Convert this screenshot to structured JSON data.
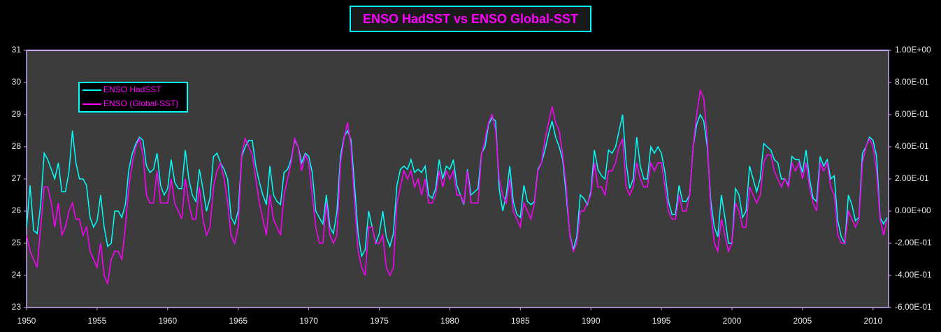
{
  "chart_data": {
    "type": "line",
    "title": "ENSO HadSST vs ENSO Global-SST",
    "x": [
      1950,
      1950.25,
      1950.5,
      1950.75,
      1951,
      1951.25,
      1951.5,
      1951.75,
      1952,
      1952.25,
      1952.5,
      1952.75,
      1953,
      1953.25,
      1953.5,
      1953.75,
      1954,
      1954.25,
      1954.5,
      1954.75,
      1955,
      1955.25,
      1955.5,
      1955.75,
      1956,
      1956.25,
      1956.5,
      1956.75,
      1957,
      1957.25,
      1957.5,
      1957.75,
      1958,
      1958.25,
      1958.5,
      1958.75,
      1959,
      1959.25,
      1959.5,
      1959.75,
      1960,
      1960.25,
      1960.5,
      1960.75,
      1961,
      1961.25,
      1961.5,
      1961.75,
      1962,
      1962.25,
      1962.5,
      1962.75,
      1963,
      1963.25,
      1963.5,
      1963.75,
      1964,
      1964.25,
      1964.5,
      1964.75,
      1965,
      1965.25,
      1965.5,
      1965.75,
      1966,
      1966.25,
      1966.5,
      1966.75,
      1967,
      1967.25,
      1967.5,
      1967.75,
      1968,
      1968.25,
      1968.5,
      1968.75,
      1969,
      1969.25,
      1969.5,
      1969.75,
      1970,
      1970.25,
      1970.5,
      1970.75,
      1971,
      1971.25,
      1971.5,
      1971.75,
      1972,
      1972.25,
      1972.5,
      1972.75,
      1973,
      1973.25,
      1973.5,
      1973.75,
      1974,
      1974.25,
      1974.5,
      1974.75,
      1975,
      1975.25,
      1975.5,
      1975.75,
      1976,
      1976.25,
      1976.5,
      1976.75,
      1977,
      1977.25,
      1977.5,
      1977.75,
      1978,
      1978.25,
      1978.5,
      1978.75,
      1979,
      1979.25,
      1979.5,
      1979.75,
      1980,
      1980.25,
      1980.5,
      1980.75,
      1981,
      1981.25,
      1981.5,
      1981.75,
      1982,
      1982.25,
      1982.5,
      1982.75,
      1983,
      1983.25,
      1983.5,
      1983.75,
      1984,
      1984.25,
      1984.5,
      1984.75,
      1985,
      1985.25,
      1985.5,
      1985.75,
      1986,
      1986.25,
      1986.5,
      1986.75,
      1987,
      1987.25,
      1987.5,
      1987.75,
      1988,
      1988.25,
      1988.5,
      1988.75,
      1989,
      1989.25,
      1989.5,
      1989.75,
      1990,
      1990.25,
      1990.5,
      1990.75,
      1991,
      1991.25,
      1991.5,
      1991.75,
      1992,
      1992.25,
      1992.5,
      1992.75,
      1993,
      1993.25,
      1993.5,
      1993.75,
      1994,
      1994.25,
      1994.5,
      1994.75,
      1995,
      1995.25,
      1995.5,
      1995.75,
      1996,
      1996.25,
      1996.5,
      1996.75,
      1997,
      1997.25,
      1997.5,
      1997.75,
      1998,
      1998.25,
      1998.5,
      1998.75,
      1999,
      1999.25,
      1999.5,
      1999.75,
      2000,
      2000.25,
      2000.5,
      2000.75,
      2001,
      2001.25,
      2001.5,
      2001.75,
      2002,
      2002.25,
      2002.5,
      2002.75,
      2003,
      2003.25,
      2003.5,
      2003.75,
      2004,
      2004.25,
      2004.5,
      2004.75,
      2005,
      2005.25,
      2005.5,
      2005.75,
      2006,
      2006.25,
      2006.5,
      2006.75,
      2007,
      2007.25,
      2007.5,
      2007.75,
      2008,
      2008.25,
      2008.5,
      2008.75,
      2009,
      2009.25,
      2009.5,
      2009.75,
      2010,
      2010.25,
      2010.5,
      2010.75,
      2011
    ],
    "series": [
      {
        "name": "ENSO HadSST",
        "color": "#00ffff",
        "values": [
          25.5,
          26.8,
          25.4,
          25.3,
          26.2,
          27.8,
          27.6,
          27.3,
          27.0,
          27.5,
          26.6,
          26.6,
          27.2,
          28.5,
          27.5,
          27.0,
          27.0,
          26.8,
          25.8,
          25.5,
          25.7,
          26.5,
          25.5,
          24.9,
          25.0,
          26.0,
          26.0,
          25.8,
          26.2,
          27.3,
          27.8,
          28.1,
          28.3,
          28.2,
          27.4,
          27.2,
          27.3,
          27.8,
          26.8,
          26.5,
          26.7,
          27.6,
          26.9,
          26.7,
          26.7,
          27.9,
          27.0,
          26.5,
          26.3,
          27.3,
          26.7,
          26.0,
          26.4,
          27.7,
          27.8,
          27.5,
          27.3,
          27.0,
          25.8,
          25.6,
          26.0,
          27.7,
          28.0,
          28.2,
          28.2,
          27.4,
          26.9,
          26.5,
          26.2,
          27.4,
          26.5,
          26.3,
          26.2,
          27.2,
          27.3,
          27.6,
          28.2,
          28.0,
          27.5,
          27.8,
          27.7,
          27.2,
          26.0,
          25.8,
          25.6,
          26.5,
          25.5,
          25.3,
          26.0,
          27.7,
          28.3,
          28.5,
          28.2,
          26.8,
          25.3,
          24.6,
          24.8,
          26.0,
          25.5,
          25.0,
          25.3,
          26.0,
          25.2,
          24.9,
          25.3,
          26.8,
          27.3,
          27.4,
          27.3,
          27.6,
          27.2,
          27.3,
          27.2,
          27.4,
          26.5,
          26.4,
          26.7,
          27.6,
          27.0,
          27.4,
          27.3,
          27.6,
          26.8,
          26.5,
          26.2,
          27.3,
          26.5,
          26.6,
          26.7,
          27.8,
          28.0,
          28.7,
          28.9,
          28.8,
          26.7,
          26.0,
          26.5,
          27.4,
          26.3,
          25.9,
          25.8,
          26.8,
          26.3,
          26.2,
          26.3,
          27.3,
          27.5,
          27.9,
          28.4,
          28.8,
          28.3,
          28.0,
          27.6,
          26.5,
          25.3,
          24.8,
          25.2,
          26.5,
          26.4,
          26.2,
          26.6,
          27.9,
          27.3,
          27.1,
          27.0,
          27.9,
          27.8,
          28.0,
          28.5,
          29.0,
          27.5,
          26.7,
          27.0,
          28.3,
          27.4,
          27.0,
          27.0,
          28.0,
          27.8,
          28.0,
          27.8,
          27.2,
          26.3,
          25.9,
          25.9,
          26.8,
          26.3,
          26.3,
          26.5,
          28.0,
          28.7,
          29.0,
          28.8,
          28.0,
          26.3,
          25.5,
          25.2,
          26.5,
          25.8,
          25.0,
          25.0,
          26.7,
          26.5,
          25.8,
          26.0,
          27.4,
          27.0,
          26.6,
          27.0,
          28.1,
          28.0,
          27.9,
          27.6,
          27.5,
          27.0,
          27.0,
          26.8,
          27.7,
          27.6,
          27.6,
          27.2,
          27.9,
          27.0,
          26.4,
          26.3,
          27.7,
          27.4,
          27.6,
          27.0,
          27.1,
          25.7,
          25.2,
          25.0,
          26.5,
          26.2,
          25.7,
          25.8,
          27.8,
          28.0,
          28.3,
          28.2,
          27.7,
          25.8,
          25.6,
          25.8
        ]
      },
      {
        "name": "ENSO (Global-SST)",
        "color": "#ff00ff",
        "axis": "y2",
        "values": [
          -0.15,
          -0.25,
          -0.3,
          -0.35,
          -0.1,
          0.15,
          0.15,
          0.05,
          -0.1,
          0.05,
          -0.15,
          -0.1,
          0.0,
          0.05,
          -0.05,
          -0.05,
          -0.15,
          -0.1,
          -0.25,
          -0.3,
          -0.35,
          -0.2,
          -0.4,
          -0.45,
          -0.3,
          -0.25,
          -0.25,
          -0.3,
          -0.1,
          0.15,
          0.3,
          0.4,
          0.45,
          0.35,
          0.1,
          0.05,
          0.05,
          0.25,
          0.05,
          0.05,
          0.05,
          0.2,
          0.05,
          0.0,
          -0.05,
          0.2,
          0.05,
          -0.05,
          -0.05,
          0.15,
          -0.05,
          -0.15,
          -0.1,
          0.15,
          0.25,
          0.3,
          0.2,
          0.05,
          -0.15,
          -0.2,
          -0.1,
          0.35,
          0.45,
          0.4,
          0.35,
          0.2,
          0.05,
          -0.05,
          -0.15,
          0.1,
          -0.05,
          -0.1,
          -0.15,
          0.1,
          0.2,
          0.3,
          0.45,
          0.4,
          0.25,
          0.35,
          0.3,
          0.1,
          -0.1,
          -0.2,
          -0.2,
          0.05,
          -0.15,
          -0.2,
          -0.15,
          0.3,
          0.45,
          0.55,
          0.4,
          0.05,
          -0.25,
          -0.35,
          -0.4,
          -0.1,
          -0.1,
          -0.2,
          -0.2,
          -0.15,
          -0.35,
          -0.4,
          -0.35,
          0.05,
          0.15,
          0.25,
          0.2,
          0.25,
          0.15,
          0.2,
          0.1,
          0.2,
          0.05,
          0.05,
          0.1,
          0.25,
          0.15,
          0.25,
          0.2,
          0.25,
          0.1,
          0.1,
          0.05,
          0.25,
          0.05,
          0.05,
          0.05,
          0.35,
          0.45,
          0.55,
          0.6,
          0.5,
          0.2,
          0.1,
          0.05,
          0.2,
          0.0,
          -0.05,
          -0.1,
          0.05,
          0.0,
          -0.05,
          0.05,
          0.25,
          0.3,
          0.45,
          0.55,
          0.65,
          0.55,
          0.5,
          0.35,
          0.15,
          -0.15,
          -0.25,
          -0.2,
          0.0,
          0.0,
          0.05,
          0.1,
          0.3,
          0.15,
          0.15,
          0.1,
          0.25,
          0.25,
          0.3,
          0.4,
          0.45,
          0.15,
          0.1,
          0.15,
          0.3,
          0.2,
          0.15,
          0.15,
          0.3,
          0.25,
          0.3,
          0.3,
          0.15,
          0.0,
          -0.05,
          -0.05,
          0.1,
          0.0,
          0.0,
          0.1,
          0.4,
          0.6,
          0.75,
          0.7,
          0.45,
          0.0,
          -0.2,
          -0.25,
          -0.05,
          -0.15,
          -0.25,
          -0.2,
          0.05,
          0.0,
          -0.1,
          -0.1,
          0.15,
          0.1,
          0.05,
          0.1,
          0.3,
          0.35,
          0.35,
          0.25,
          0.2,
          0.15,
          0.2,
          0.15,
          0.3,
          0.25,
          0.3,
          0.2,
          0.3,
          0.15,
          0.05,
          0.0,
          0.3,
          0.25,
          0.3,
          0.15,
          0.1,
          -0.15,
          -0.2,
          -0.2,
          0.0,
          -0.05,
          -0.1,
          -0.05,
          0.3,
          0.4,
          0.45,
          0.4,
          0.25,
          -0.05,
          -0.15,
          -0.05
        ]
      }
    ],
    "xlim": [
      1950,
      2011.1
    ],
    "xticks": [
      1950,
      1955,
      1960,
      1965,
      1970,
      1975,
      1980,
      1985,
      1990,
      1995,
      2000,
      2005,
      2010
    ],
    "ylim": [
      23,
      31
    ],
    "yticks": [
      23,
      24,
      25,
      26,
      27,
      28,
      29,
      30,
      31
    ],
    "y2lim": [
      -0.6,
      1.0
    ],
    "y2ticks": [
      {
        "value": -0.6,
        "label": "-6.00E-01"
      },
      {
        "value": -0.4,
        "label": "-4.00E-01"
      },
      {
        "value": -0.2,
        "label": "-2.00E-01"
      },
      {
        "value": 0,
        "label": "0.00E+00"
      },
      {
        "value": 0.2,
        "label": "2.00E-01"
      },
      {
        "value": 0.4,
        "label": "4.00E-01"
      },
      {
        "value": 0.6,
        "label": "6.00E-01"
      },
      {
        "value": 0.8,
        "label": "8.00E-01"
      },
      {
        "value": 1.0,
        "label": "1.00E+00"
      }
    ],
    "legend": "upper left"
  }
}
